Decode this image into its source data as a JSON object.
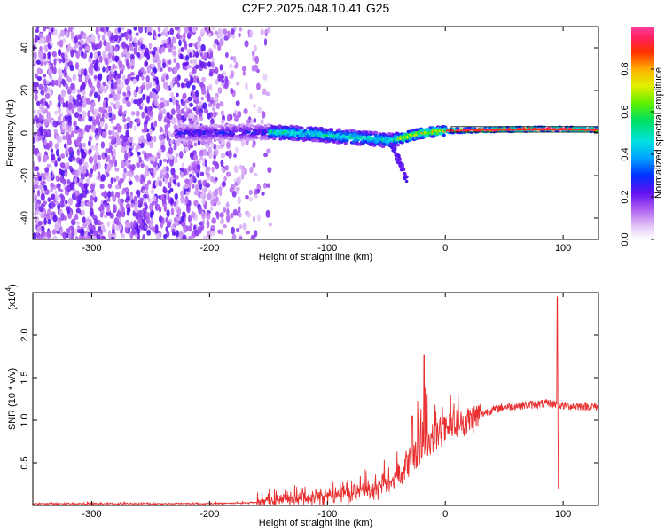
{
  "title": "C2E2.2025.048.10.41.G25",
  "chart_data": [
    {
      "type": "heatmap",
      "name": "spectrogram",
      "xlabel": "Height of straight line (km)",
      "ylabel": "Frequency (Hz)",
      "xlim": [
        -350,
        130
      ],
      "ylim": [
        -50,
        50
      ],
      "x_ticks": [
        -300,
        -200,
        -100,
        0,
        100
      ],
      "y_ticks": [
        -40,
        -20,
        0,
        20,
        40
      ],
      "colorbar": {
        "label": "Normalized spectral amplitude",
        "range": [
          0.0,
          1.0
        ],
        "ticks": [
          0.0,
          0.2,
          0.4,
          0.6,
          0.8
        ],
        "tick_labels": [
          "0.0",
          "0.2",
          "0.4",
          "0.6",
          "0.8"
        ]
      },
      "features": {
        "noise_region_x": [
          -350,
          -155
        ],
        "signal_track": [
          {
            "x": -225,
            "f": 0.0
          },
          {
            "x": -150,
            "f": 0.5
          },
          {
            "x": -110,
            "f": -0.5
          },
          {
            "x": -80,
            "f": -2.0
          },
          {
            "x": -45,
            "f": -3.5
          },
          {
            "x": -20,
            "f": 0.0
          },
          {
            "x": 0,
            "f": 1.0
          },
          {
            "x": 40,
            "f": 1.5
          },
          {
            "x": 90,
            "f": 2.0
          },
          {
            "x": 130,
            "f": 1.5
          }
        ]
      }
    },
    {
      "type": "line",
      "name": "snr",
      "xlabel": "Height of straight line (km)",
      "ylabel": "SNR (10 * v/v)",
      "y_multiplier": "(x10",
      "y_multiplier_exp": "4",
      "xlim": [
        -350,
        130
      ],
      "ylim": [
        0,
        2.5
      ],
      "x_ticks": [
        -300,
        -200,
        -100,
        0,
        100
      ],
      "y_ticks": [
        0.5,
        1.0,
        1.5,
        2.0
      ],
      "y_tick_labels": [
        "0.5",
        "1.0",
        "1.5",
        "2.0"
      ],
      "color": "#e83030",
      "envelope": [
        {
          "x": -350,
          "y": 0.02
        },
        {
          "x": -200,
          "y": 0.02
        },
        {
          "x": -170,
          "y": 0.03
        },
        {
          "x": -140,
          "y": 0.05
        },
        {
          "x": -110,
          "y": 0.09
        },
        {
          "x": -80,
          "y": 0.15
        },
        {
          "x": -60,
          "y": 0.2
        },
        {
          "x": -45,
          "y": 0.3
        },
        {
          "x": -35,
          "y": 0.45
        },
        {
          "x": -25,
          "y": 0.6
        },
        {
          "x": -15,
          "y": 0.75
        },
        {
          "x": -5,
          "y": 0.85
        },
        {
          "x": 5,
          "y": 0.92
        },
        {
          "x": 20,
          "y": 1.0
        },
        {
          "x": 35,
          "y": 1.1
        },
        {
          "x": 50,
          "y": 1.16
        },
        {
          "x": 70,
          "y": 1.18
        },
        {
          "x": 90,
          "y": 1.2
        },
        {
          "x": 100,
          "y": 1.17
        },
        {
          "x": 130,
          "y": 1.16
        }
      ],
      "spikes": [
        {
          "x": -18,
          "y": 1.77
        },
        {
          "x": -28,
          "y": 1.05
        },
        {
          "x": 95,
          "y": 2.45
        },
        {
          "x": 96,
          "y": 0.2
        }
      ]
    }
  ]
}
